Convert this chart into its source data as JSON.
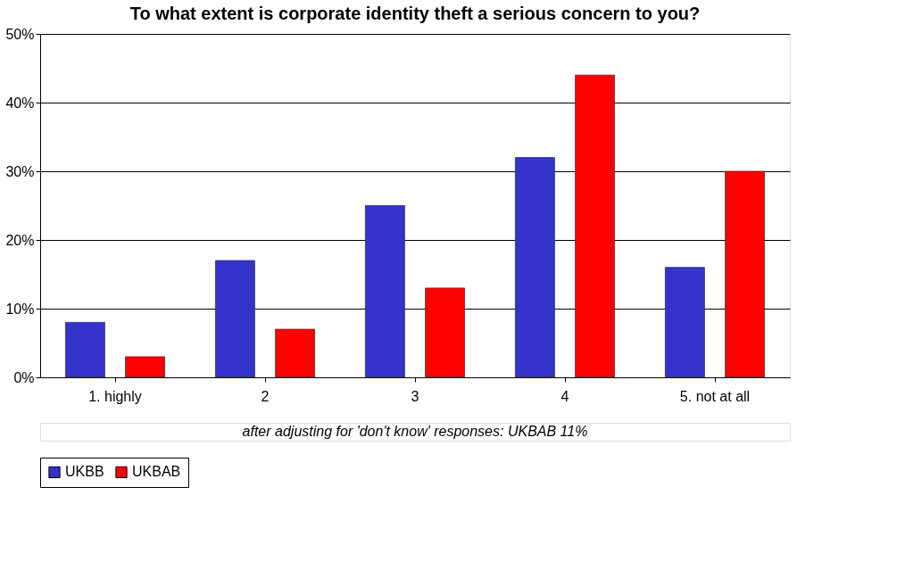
{
  "chart_data": {
    "type": "bar",
    "title": "To what extent is corporate identity theft a serious concern to you?",
    "categories": [
      "1. highly",
      "2",
      "3",
      "4",
      "5. not at all"
    ],
    "series": [
      {
        "name": "UKBB",
        "color": "#3333cc",
        "values": [
          8,
          17,
          25,
          32,
          16
        ]
      },
      {
        "name": "UKBAB",
        "color": "#ff0000",
        "values": [
          3,
          7,
          13,
          44,
          30
        ]
      }
    ],
    "ylim": [
      0,
      50
    ],
    "yticks": [
      {
        "value": 0,
        "label": "0%"
      },
      {
        "value": 10,
        "label": "10%"
      },
      {
        "value": 20,
        "label": "20%"
      },
      {
        "value": 30,
        "label": "30%"
      },
      {
        "value": 40,
        "label": "40%"
      },
      {
        "value": 50,
        "label": "50%"
      }
    ],
    "grid": "y",
    "legend": "bottom",
    "annotations": [
      "after adjusting for 'don't know' responses: UKBAB 11%"
    ]
  }
}
